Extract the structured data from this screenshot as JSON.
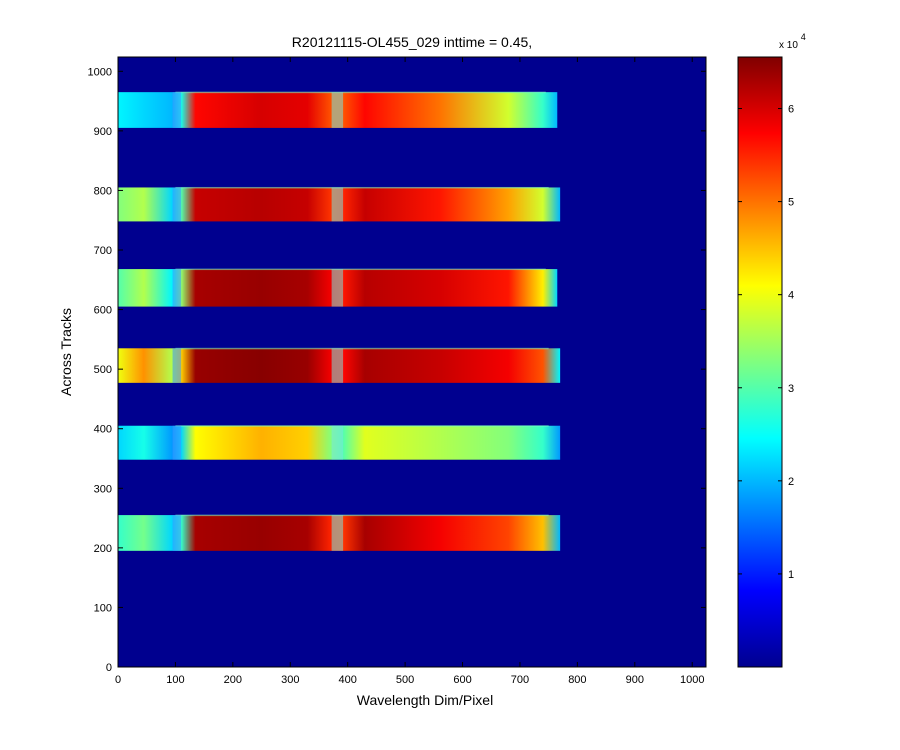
{
  "chart_data": {
    "type": "heatmap",
    "title": "R20121115-OL455_029 inttime = 0.45,",
    "xlabel": "Wavelength Dim/Pixel",
    "ylabel": "Across Tracks",
    "xlim": [
      0,
      1024
    ],
    "ylim": [
      0,
      1024
    ],
    "x_ticks": [
      0,
      100,
      200,
      300,
      400,
      500,
      600,
      700,
      800,
      900,
      1000
    ],
    "y_ticks": [
      0,
      100,
      200,
      300,
      400,
      500,
      600,
      700,
      800,
      900,
      1000
    ],
    "colormap": "jet",
    "background_color": "#00008f",
    "colorbar": {
      "range": [
        0,
        65535
      ],
      "ticks": [
        1,
        2,
        3,
        4,
        5,
        6
      ],
      "tick_labels": [
        "1",
        "2",
        "3",
        "4",
        "5",
        "6"
      ],
      "exponent_label": "x 10",
      "exponent": "4"
    },
    "spectral_bands": [
      {
        "y_range": [
          905,
          965
        ],
        "x_range": [
          0,
          765
        ],
        "gap_x": [
          372,
          392
        ],
        "profile_x": [
          0,
          45,
          95,
          110,
          135,
          250,
          330,
          372,
          392,
          430,
          560,
          680,
          740,
          765
        ],
        "profile_values": [
          24000,
          22000,
          20000,
          26000,
          57000,
          60000,
          59000,
          52000,
          52000,
          57000,
          50000,
          38000,
          28000,
          20000
        ]
      },
      {
        "y_range": [
          748,
          805
        ],
        "x_range": [
          0,
          770
        ],
        "gap_x": [
          372,
          392
        ],
        "profile_x": [
          0,
          45,
          95,
          110,
          135,
          250,
          330,
          372,
          392,
          430,
          560,
          680,
          740,
          770
        ],
        "profile_values": [
          33000,
          36000,
          22000,
          30000,
          61000,
          62000,
          61000,
          54000,
          55000,
          61000,
          56000,
          47000,
          38000,
          20000
        ]
      },
      {
        "y_range": [
          605,
          668
        ],
        "x_range": [
          0,
          765
        ],
        "gap_x": [
          372,
          392
        ],
        "profile_x": [
          0,
          45,
          95,
          110,
          135,
          250,
          330,
          372,
          392,
          430,
          560,
          680,
          740,
          765
        ],
        "profile_values": [
          30000,
          36000,
          24000,
          34000,
          63000,
          64000,
          63000,
          58000,
          56000,
          62000,
          60000,
          56000,
          42000,
          22000
        ]
      },
      {
        "y_range": [
          477,
          535
        ],
        "x_range": [
          0,
          770
        ],
        "gap_x": [
          372,
          392
        ],
        "profile_x": [
          0,
          45,
          95,
          110,
          135,
          250,
          330,
          372,
          392,
          430,
          560,
          680,
          740,
          770
        ],
        "profile_values": [
          40000,
          48000,
          36000,
          44000,
          64000,
          65000,
          64000,
          58000,
          57000,
          63000,
          61000,
          58000,
          52000,
          24000
        ]
      },
      {
        "y_range": [
          348,
          405
        ],
        "x_range": [
          0,
          770
        ],
        "gap_x": [
          372,
          392
        ],
        "profile_x": [
          0,
          45,
          95,
          110,
          135,
          250,
          330,
          372,
          392,
          430,
          560,
          680,
          740,
          770
        ],
        "profile_values": [
          22000,
          26000,
          18000,
          22000,
          41000,
          46000,
          44000,
          33000,
          30000,
          39000,
          36000,
          33000,
          28000,
          18000
        ]
      },
      {
        "y_range": [
          195,
          255
        ],
        "x_range": [
          0,
          770
        ],
        "gap_x": [
          372,
          392
        ],
        "profile_x": [
          0,
          45,
          95,
          110,
          135,
          250,
          330,
          372,
          392,
          430,
          560,
          680,
          740,
          770
        ],
        "profile_values": [
          28000,
          32000,
          22000,
          28000,
          63000,
          64000,
          63000,
          55000,
          54000,
          63000,
          58000,
          53000,
          45000,
          20000
        ]
      }
    ]
  }
}
